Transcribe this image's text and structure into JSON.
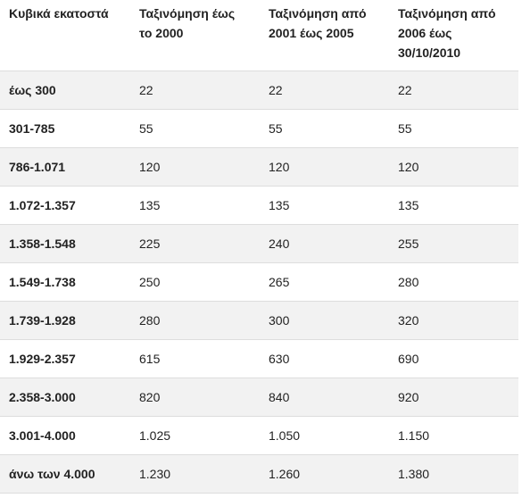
{
  "table": {
    "headers": [
      "Κυβικά εκατοστά",
      "Ταξινόμηση έως το 2000",
      "Ταξινόμηση από 2001 έως 2005",
      "Ταξινόμηση από 2006 έως 30/10/2010"
    ],
    "rows": [
      [
        "έως 300",
        "22",
        "22",
        "22"
      ],
      [
        "301-785",
        "55",
        "55",
        "55"
      ],
      [
        "786-1.071",
        "120",
        "120",
        "120"
      ],
      [
        "1.072-1.357",
        "135",
        "135",
        "135"
      ],
      [
        "1.358-1.548",
        "225",
        "240",
        "255"
      ],
      [
        "1.549-1.738",
        "250",
        "265",
        "280"
      ],
      [
        "1.739-1.928",
        "280",
        "300",
        "320"
      ],
      [
        "1.929-2.357",
        "615",
        "630",
        "690"
      ],
      [
        "2.358-3.000",
        "820",
        "840",
        "920"
      ],
      [
        "3.001-4.000",
        "1.025",
        "1.050",
        "1.150"
      ],
      [
        "άνω των 4.000",
        "1.230",
        "1.260",
        "1.380"
      ]
    ]
  }
}
